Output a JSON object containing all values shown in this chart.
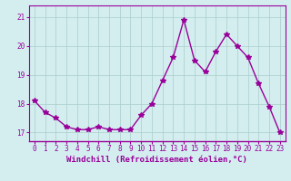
{
  "hours": [
    0,
    1,
    2,
    3,
    4,
    5,
    6,
    7,
    8,
    9,
    10,
    11,
    12,
    13,
    14,
    15,
    16,
    17,
    18,
    19,
    20,
    21,
    22,
    23
  ],
  "values": [
    18.1,
    17.7,
    17.5,
    17.2,
    17.1,
    17.1,
    17.2,
    17.1,
    17.1,
    17.1,
    17.6,
    18.0,
    18.8,
    19.6,
    20.9,
    19.5,
    19.1,
    19.8,
    20.4,
    20.0,
    19.6,
    18.7,
    17.9,
    17.0
  ],
  "line_color": "#990099",
  "marker": "*",
  "marker_size": 4,
  "bg_color": "#d4eef0",
  "grid_color": "#aacccc",
  "xlabel": "Windchill (Refroidissement éolien,°C)",
  "ylim": [
    16.7,
    21.4
  ],
  "yticks": [
    17,
    18,
    19,
    20,
    21
  ],
  "xticks": [
    0,
    1,
    2,
    3,
    4,
    5,
    6,
    7,
    8,
    9,
    10,
    11,
    12,
    13,
    14,
    15,
    16,
    17,
    18,
    19,
    20,
    21,
    22,
    23
  ],
  "tick_label_fontsize": 5.5,
  "xlabel_fontsize": 6.5,
  "line_width": 1.0,
  "label_color": "#990099"
}
